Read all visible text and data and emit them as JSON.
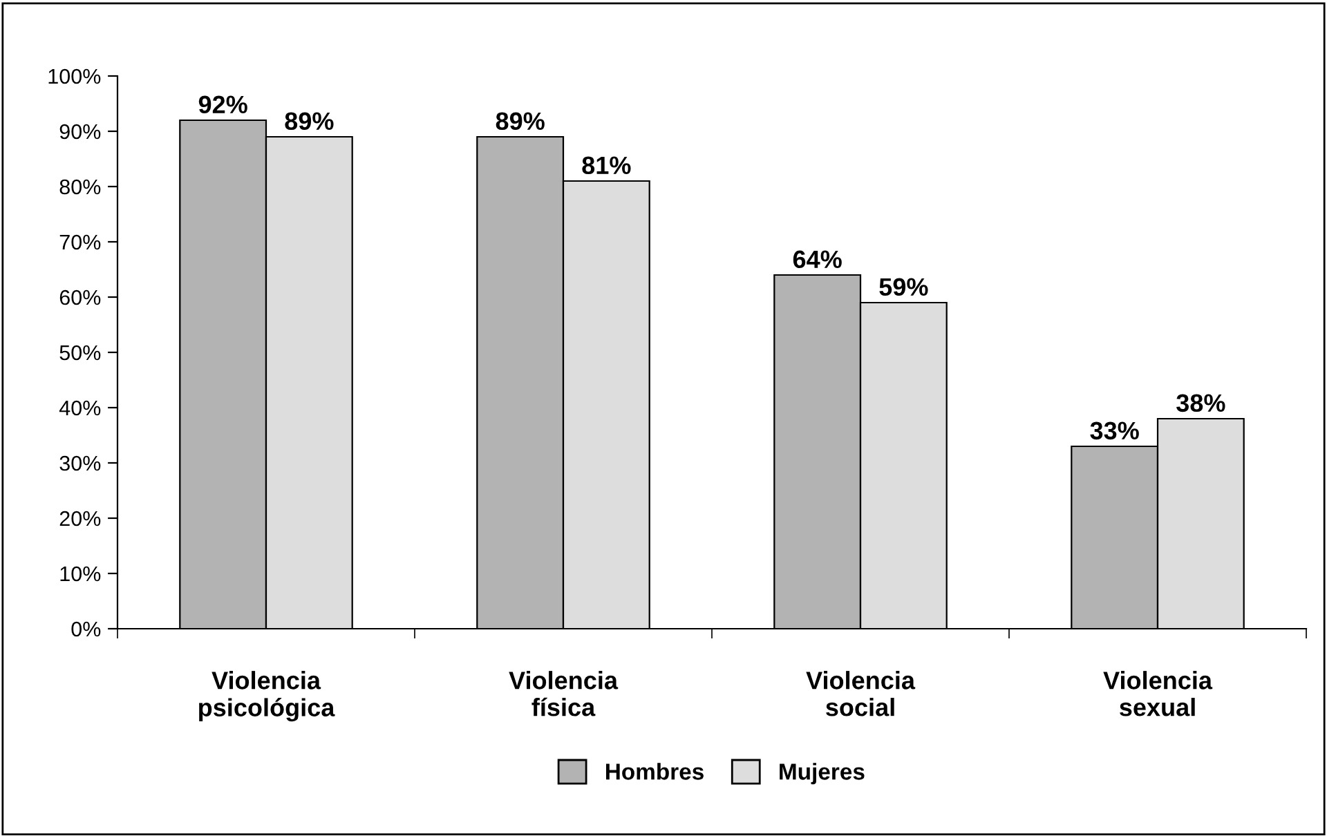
{
  "chart_data": {
    "type": "bar",
    "categories": [
      "Violencia\npsicológica",
      "Violencia\nfísica",
      "Violencia\nsocial",
      "Violencia\nsexual"
    ],
    "series": [
      {
        "name": "Hombres",
        "color": "#b3b3b3",
        "values": [
          92,
          89,
          64,
          33
        ],
        "value_labels": [
          "92%",
          "89%",
          "64%",
          "33%"
        ]
      },
      {
        "name": "Mujeres",
        "color": "#dddddd",
        "values": [
          89,
          81,
          59,
          38
        ],
        "value_labels": [
          "89%",
          "81%",
          "59%",
          "38%"
        ]
      }
    ],
    "ylim": [
      0,
      100
    ],
    "yticks": [
      {
        "value": 0,
        "label": "0%"
      },
      {
        "value": 10,
        "label": "10%"
      },
      {
        "value": 20,
        "label": "20%"
      },
      {
        "value": 30,
        "label": "30%"
      },
      {
        "value": 40,
        "label": "40%"
      },
      {
        "value": 50,
        "label": "50%"
      },
      {
        "value": 60,
        "label": "60%"
      },
      {
        "value": 70,
        "label": "70%"
      },
      {
        "value": 80,
        "label": "80%"
      },
      {
        "value": 90,
        "label": "90%"
      },
      {
        "value": 100,
        "label": "100%"
      }
    ],
    "grid": false,
    "legend": "bottom"
  }
}
